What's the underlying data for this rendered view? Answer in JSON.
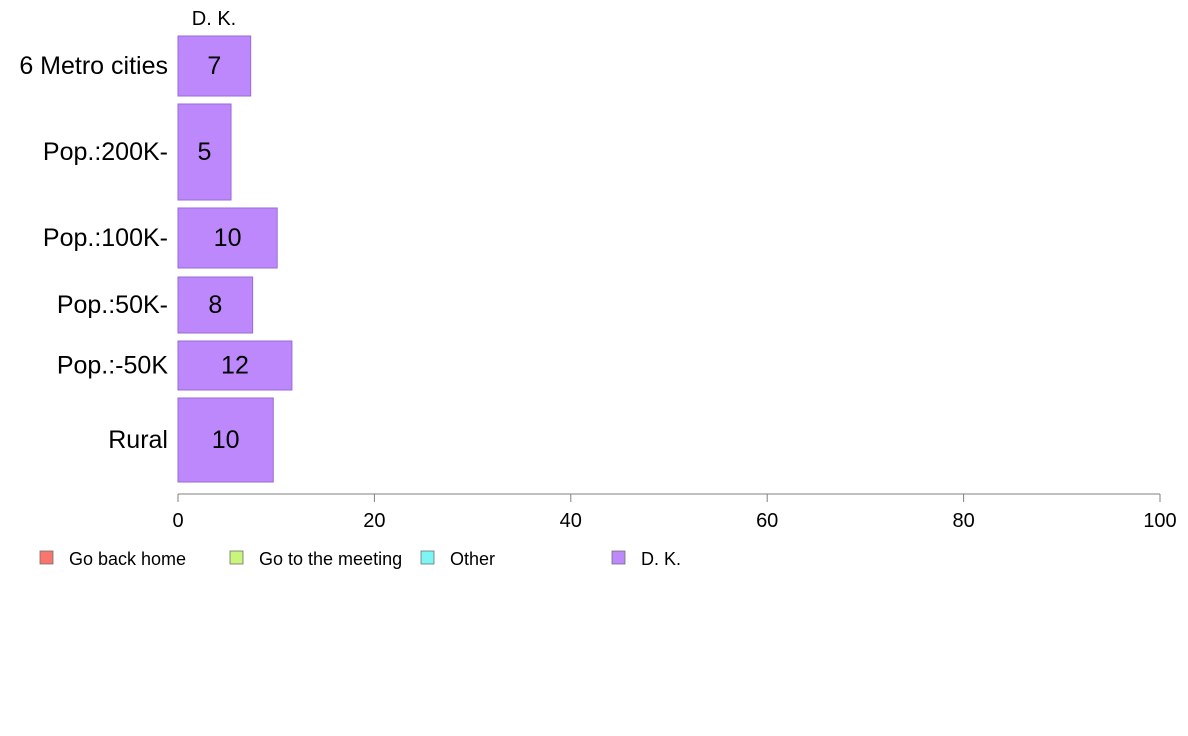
{
  "chart_data": {
    "type": "bar",
    "orientation": "horizontal",
    "stacked": true,
    "column_header": "D. K.",
    "categories": [
      "6 Metro cities",
      "Pop.:200K-",
      "Pop.:100K-",
      "Pop.:50K-",
      "Pop.:-50K",
      "Rural"
    ],
    "series": [
      {
        "name": "Go back home",
        "color": "#f8766d",
        "values": [
          null,
          null,
          null,
          null,
          null,
          null
        ]
      },
      {
        "name": "Go to the meeting",
        "color": "#c8f57a",
        "values": [
          null,
          null,
          null,
          null,
          null,
          null
        ]
      },
      {
        "name": "Other",
        "color": "#7ef5f5",
        "values": [
          null,
          null,
          null,
          null,
          null,
          null
        ]
      },
      {
        "name": "D. K.",
        "color": "#bd88fc",
        "values": [
          7.4,
          5.4,
          10.1,
          7.6,
          11.6,
          9.7
        ],
        "labels": [
          "7",
          "5",
          "10",
          "8",
          "12",
          "10"
        ]
      }
    ],
    "xlim": [
      0,
      100
    ],
    "xticks": [
      "0",
      "20",
      "40",
      "60",
      "80",
      "100"
    ],
    "grid": false,
    "legend_position": "bottom"
  }
}
